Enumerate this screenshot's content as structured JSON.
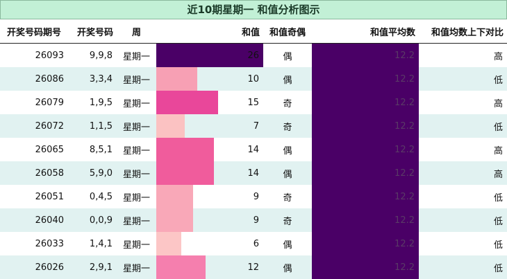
{
  "title": "近10期星期一 和值分析图示",
  "headers": {
    "issue": "开奖号码期号",
    "number": "开奖号码",
    "weekday": "周",
    "sum": "和值",
    "parity": "和值奇偶",
    "avg": "和值平均数",
    "compare": "和值均数上下对比"
  },
  "colors": {
    "header_bg": "#c2f0d6",
    "alt_row": "#e1f2f1",
    "avg_fill": "#4a0066"
  },
  "sum_scale_max": 26,
  "rows": [
    {
      "issue": "26093",
      "number": "9,9,8",
      "weekday": "星期一",
      "sum": 26,
      "parity": "偶",
      "avg": "12.2",
      "compare": "高",
      "bar_color": "#4a0066"
    },
    {
      "issue": "26086",
      "number": "3,3,4",
      "weekday": "星期一",
      "sum": 10,
      "parity": "偶",
      "avg": "12.2",
      "compare": "低",
      "bar_color": "#f7a0b4"
    },
    {
      "issue": "26079",
      "number": "1,9,5",
      "weekday": "星期一",
      "sum": 15,
      "parity": "奇",
      "avg": "12.2",
      "compare": "高",
      "bar_color": "#e9479a"
    },
    {
      "issue": "26072",
      "number": "1,1,5",
      "weekday": "星期一",
      "sum": 7,
      "parity": "奇",
      "avg": "12.2",
      "compare": "低",
      "bar_color": "#fbc2c2"
    },
    {
      "issue": "26065",
      "number": "8,5,1",
      "weekday": "星期一",
      "sum": 14,
      "parity": "偶",
      "avg": "12.2",
      "compare": "高",
      "bar_color": "#f05c9c"
    },
    {
      "issue": "26058",
      "number": "5,9,0",
      "weekday": "星期一",
      "sum": 14,
      "parity": "偶",
      "avg": "12.2",
      "compare": "高",
      "bar_color": "#f05c9c"
    },
    {
      "issue": "26051",
      "number": "0,4,5",
      "weekday": "星期一",
      "sum": 9,
      "parity": "奇",
      "avg": "12.2",
      "compare": "低",
      "bar_color": "#f9a8b8"
    },
    {
      "issue": "26040",
      "number": "0,0,9",
      "weekday": "星期一",
      "sum": 9,
      "parity": "奇",
      "avg": "12.2",
      "compare": "低",
      "bar_color": "#f9a8b8"
    },
    {
      "issue": "26033",
      "number": "1,4,1",
      "weekday": "星期一",
      "sum": 6,
      "parity": "偶",
      "avg": "12.2",
      "compare": "低",
      "bar_color": "#fcc6c6"
    },
    {
      "issue": "26026",
      "number": "2,9,1",
      "weekday": "星期一",
      "sum": 12,
      "parity": "偶",
      "avg": "12.2",
      "compare": "低",
      "bar_color": "#f57fae"
    }
  ]
}
